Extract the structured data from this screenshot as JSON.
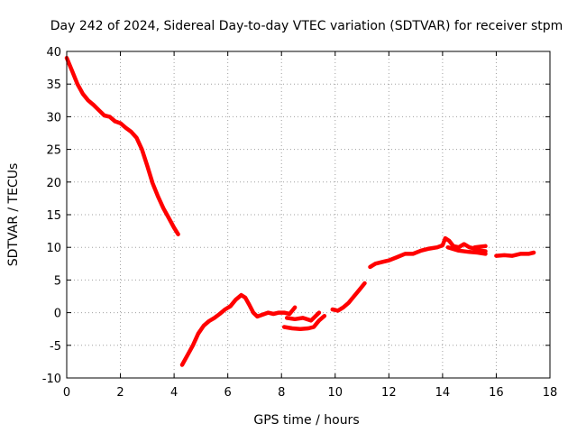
{
  "chart_data": {
    "type": "line",
    "title": "Day 242 of 2024, Sidereal Day-to-day VTEC variation (SDTVAR) for receiver stpm",
    "xlabel": "GPS time / hours",
    "ylabel": "SDTVAR / TECUs",
    "xlim": [
      0,
      18
    ],
    "ylim": [
      -10,
      40
    ],
    "xticks": [
      0,
      2,
      4,
      6,
      8,
      10,
      12,
      14,
      16,
      18
    ],
    "yticks": [
      -10,
      -5,
      0,
      5,
      10,
      15,
      20,
      25,
      30,
      35,
      40
    ],
    "grid": true,
    "series": [
      {
        "name": "SDTVAR",
        "color": "#ff0000",
        "segments": [
          [
            [
              0.0,
              39
            ],
            [
              0.2,
              37
            ],
            [
              0.4,
              35
            ],
            [
              0.6,
              33.5
            ],
            [
              0.8,
              32.5
            ],
            [
              1.0,
              31.8
            ],
            [
              1.2,
              31
            ],
            [
              1.4,
              30.2
            ],
            [
              1.6,
              30
            ],
            [
              1.8,
              29.3
            ],
            [
              2.0,
              29
            ],
            [
              2.2,
              28.3
            ],
            [
              2.4,
              27.7
            ],
            [
              2.6,
              26.8
            ],
            [
              2.8,
              25
            ],
            [
              3.0,
              22.5
            ],
            [
              3.2,
              19.8
            ],
            [
              3.4,
              17.8
            ],
            [
              3.6,
              16
            ],
            [
              3.8,
              14.5
            ],
            [
              4.0,
              13
            ],
            [
              4.15,
              12
            ]
          ],
          [
            [
              4.3,
              -8
            ],
            [
              4.5,
              -6.5
            ],
            [
              4.7,
              -5
            ],
            [
              4.9,
              -3.2
            ],
            [
              5.1,
              -2
            ],
            [
              5.3,
              -1.3
            ],
            [
              5.5,
              -0.8
            ],
            [
              5.7,
              -0.2
            ],
            [
              5.9,
              0.5
            ],
            [
              6.1,
              1
            ],
            [
              6.3,
              2
            ],
            [
              6.5,
              2.7
            ],
            [
              6.65,
              2.3
            ],
            [
              6.8,
              1.2
            ],
            [
              6.95,
              0
            ],
            [
              7.1,
              -0.6
            ],
            [
              7.3,
              -0.3
            ],
            [
              7.5,
              0
            ],
            [
              7.7,
              -0.2
            ],
            [
              7.9,
              0
            ],
            [
              8.1,
              0
            ],
            [
              8.3,
              -0.2
            ],
            [
              8.5,
              0.8
            ]
          ],
          [
            [
              8.1,
              -2.2
            ],
            [
              8.4,
              -2.4
            ],
            [
              8.7,
              -2.5
            ],
            [
              9.0,
              -2.4
            ],
            [
              9.2,
              -2.2
            ],
            [
              9.4,
              -1.2
            ],
            [
              9.6,
              -0.5
            ]
          ],
          [
            [
              8.2,
              -0.8
            ],
            [
              8.5,
              -1
            ],
            [
              8.8,
              -0.8
            ],
            [
              9.1,
              -1.2
            ],
            [
              9.4,
              0
            ]
          ],
          [
            [
              9.9,
              0.5
            ],
            [
              10.1,
              0.3
            ],
            [
              10.3,
              0.8
            ],
            [
              10.5,
              1.5
            ],
            [
              10.7,
              2.5
            ],
            [
              10.9,
              3.5
            ],
            [
              11.1,
              4.5
            ]
          ],
          [
            [
              11.3,
              7
            ],
            [
              11.5,
              7.5
            ],
            [
              11.8,
              7.8
            ],
            [
              12.0,
              8
            ],
            [
              12.3,
              8.5
            ],
            [
              12.6,
              9
            ],
            [
              12.9,
              9
            ],
            [
              13.2,
              9.5
            ],
            [
              13.5,
              9.8
            ],
            [
              13.8,
              10
            ],
            [
              14.0,
              10.3
            ],
            [
              14.1,
              11.4
            ],
            [
              14.25,
              11
            ],
            [
              14.4,
              10.2
            ],
            [
              14.6,
              10
            ],
            [
              14.8,
              10.5
            ],
            [
              15.0,
              10
            ],
            [
              15.2,
              9.8
            ],
            [
              15.4,
              9.5
            ],
            [
              15.6,
              9.4
            ]
          ],
          [
            [
              14.2,
              10
            ],
            [
              14.6,
              9.5
            ],
            [
              15.0,
              9.3
            ],
            [
              15.3,
              9.2
            ],
            [
              15.6,
              9
            ]
          ],
          [
            [
              15.6,
              10.2
            ],
            [
              15.4,
              10.1
            ],
            [
              15.2,
              10
            ]
          ],
          [
            [
              16.0,
              8.7
            ],
            [
              16.3,
              8.8
            ],
            [
              16.6,
              8.7
            ],
            [
              16.9,
              9
            ],
            [
              17.2,
              9
            ],
            [
              17.4,
              9.2
            ]
          ]
        ]
      }
    ]
  }
}
